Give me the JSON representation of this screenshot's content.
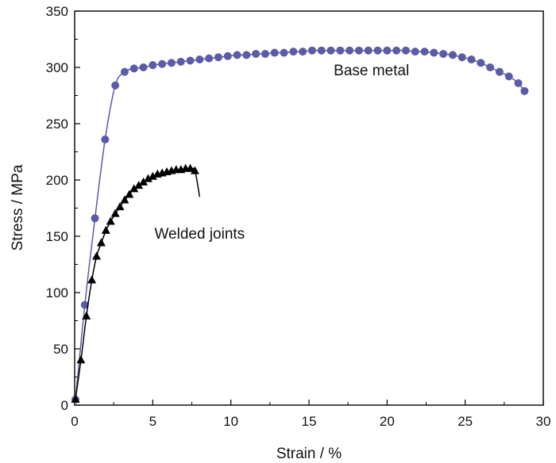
{
  "chart_data": {
    "type": "line",
    "title": "",
    "xlabel": "Strain / %",
    "ylabel": "Stress / MPa",
    "xlim": [
      0,
      30
    ],
    "ylim": [
      0,
      350
    ],
    "xticks": [
      0,
      5,
      10,
      15,
      20,
      25,
      30
    ],
    "yticks": [
      0,
      50,
      100,
      150,
      200,
      250,
      300,
      350
    ],
    "grid": false,
    "series": [
      {
        "name": "Base metal",
        "marker": "circle",
        "color": "#5b5ba8",
        "x": [
          0.05,
          0.65,
          1.3,
          1.95,
          2.6,
          3.2,
          3.8,
          4.4,
          5.0,
          5.6,
          6.2,
          6.8,
          7.4,
          8.0,
          8.6,
          9.2,
          9.8,
          10.4,
          11.0,
          11.6,
          12.2,
          12.8,
          13.4,
          14.0,
          14.6,
          15.2,
          15.8,
          16.4,
          17.0,
          17.6,
          18.2,
          18.8,
          19.4,
          20.0,
          20.6,
          21.2,
          21.8,
          22.4,
          23.0,
          23.6,
          24.2,
          24.8,
          25.4,
          26.0,
          26.6,
          27.2,
          27.8,
          28.4,
          28.8
        ],
        "y": [
          5,
          89,
          166,
          236,
          284,
          296,
          299,
          300,
          302,
          303,
          304,
          305,
          306,
          307,
          308,
          309,
          310,
          311,
          311,
          312,
          312,
          313,
          313,
          314,
          314,
          315,
          315,
          315,
          315,
          315,
          315,
          315,
          315,
          315,
          315,
          315,
          314,
          314,
          313,
          312,
          311,
          309,
          307,
          304,
          300,
          296,
          292,
          286,
          279
        ]
      },
      {
        "name": "Welded joints",
        "marker": "triangle",
        "color": "#000000",
        "x": [
          0.05,
          0.4,
          0.75,
          1.1,
          1.4,
          1.7,
          2.0,
          2.3,
          2.6,
          2.9,
          3.2,
          3.5,
          3.8,
          4.1,
          4.4,
          4.7,
          5.0,
          5.3,
          5.6,
          5.9,
          6.2,
          6.5,
          6.8,
          7.1,
          7.4,
          7.7
        ],
        "y": [
          5,
          40,
          79,
          111,
          132,
          144,
          155,
          163,
          170,
          176,
          182,
          187,
          192,
          195,
          198,
          201,
          203,
          205,
          206,
          207,
          208,
          209,
          209,
          210,
          210,
          208
        ],
        "line_end": [
          8.0,
          185
        ]
      }
    ],
    "annotations": [
      {
        "text": "Base metal",
        "x": 19.0,
        "y": 293
      },
      {
        "text": "Welded joints",
        "x": 8.0,
        "y": 148
      }
    ]
  }
}
